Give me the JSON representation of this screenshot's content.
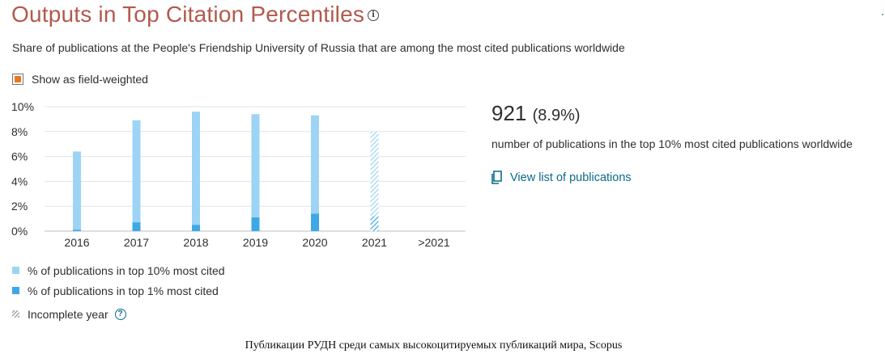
{
  "header": {
    "title": "Outputs in Top Citation Percentiles",
    "info_icon": "info-circle-icon",
    "subtitle": "Share of publications at the People's Friendship University of Russia that are among the most cited publications worldwide"
  },
  "controls": {
    "field_weighted_label": "Show as field-weighted",
    "field_weighted_checked": false,
    "checkbox_accent": "#e87722"
  },
  "summary": {
    "count": "921",
    "percent": "(8.9%)",
    "caption": "number of publications in the top 10% most cited publications worldwide",
    "link_label": "View list of publications",
    "link_icon": "document-icon"
  },
  "legend": {
    "top10_label": "% of publications in top 10% most cited",
    "top1_label": "% of publications in top 1% most cited",
    "incomplete_label": "Incomplete year",
    "help_icon": "question-circle-icon"
  },
  "footer": {
    "caption": "Публикации РУДН среди самых высокоцитируемых публикаций мира, Scopus"
  },
  "chart_data": {
    "type": "bar",
    "categories": [
      "2016",
      "2017",
      "2018",
      "2019",
      "2020",
      "2021",
      ">2021"
    ],
    "series": [
      {
        "name": "% of publications in top 10% most cited",
        "values": [
          6.4,
          8.9,
          9.6,
          9.4,
          9.3,
          8.0,
          null
        ],
        "color": "#9dd4f5"
      },
      {
        "name": "% of publications in top 1% most cited",
        "values": [
          0.1,
          0.7,
          0.5,
          1.1,
          1.4,
          1.2,
          null
        ],
        "color": "#3ea8e6"
      }
    ],
    "incomplete_categories": [
      "2021"
    ],
    "ylim": [
      0,
      10
    ],
    "yticks": [
      0,
      2,
      4,
      6,
      8,
      10
    ],
    "ytick_labels": [
      "0%",
      "2%",
      "4%",
      "6%",
      "8%",
      "10%"
    ],
    "grid": true,
    "xlabel": "",
    "ylabel": "",
    "title": ""
  }
}
